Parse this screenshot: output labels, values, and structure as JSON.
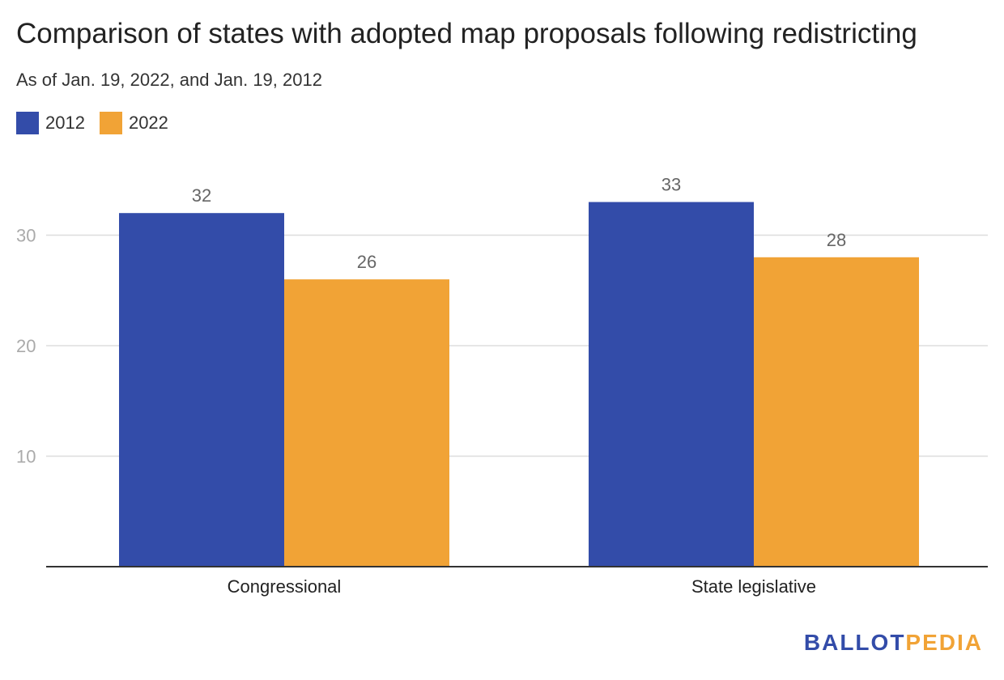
{
  "chart_data": {
    "type": "bar",
    "title": "Comparison of states with adopted map proposals following redistricting",
    "subtitle": "As of Jan. 19, 2022, and Jan. 19, 2012",
    "categories": [
      "Congressional",
      "State legislative"
    ],
    "series": [
      {
        "name": "2012",
        "color": "#334ca9",
        "values": [
          32,
          33
        ]
      },
      {
        "name": "2022",
        "color": "#f1a336",
        "values": [
          26,
          28
        ]
      }
    ],
    "xlabel": "",
    "ylabel": "",
    "ylim": [
      0,
      35
    ],
    "yticks": [
      10,
      20,
      30
    ],
    "grid": true,
    "legend_position": "top-left",
    "data_labels": true
  },
  "branding": {
    "logo_part1": "BALLOT",
    "logo_part2": "PEDIA",
    "logo_color1": "#334ca9",
    "logo_color2": "#f1a336"
  }
}
